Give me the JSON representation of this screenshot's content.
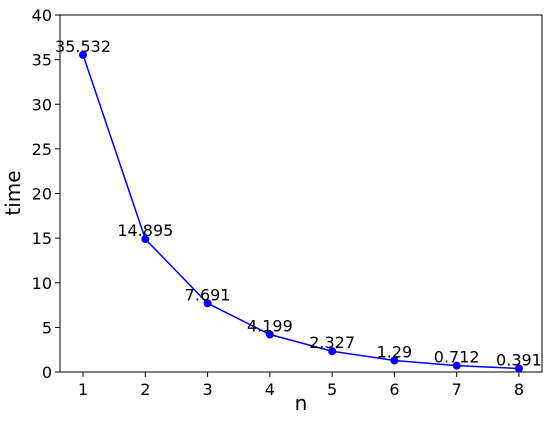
{
  "chart_data": {
    "type": "line",
    "x_label": "n",
    "y_label": "time",
    "x": [
      1,
      2,
      3,
      4,
      5,
      6,
      7,
      8
    ],
    "series": [
      {
        "color": "#0000ff",
        "values": [
          35.532,
          14.895,
          7.691,
          4.199,
          2.327,
          1.29,
          0.712,
          0.391
        ]
      }
    ],
    "xlim": [
      0.63,
      8.37
    ],
    "xticks": [
      1,
      2,
      3,
      4,
      5,
      6,
      7,
      8
    ],
    "ylim": [
      0,
      40
    ],
    "yticks": [
      0,
      5,
      10,
      15,
      20,
      25,
      30,
      35,
      40
    ],
    "grid": false,
    "data_labels": true
  }
}
